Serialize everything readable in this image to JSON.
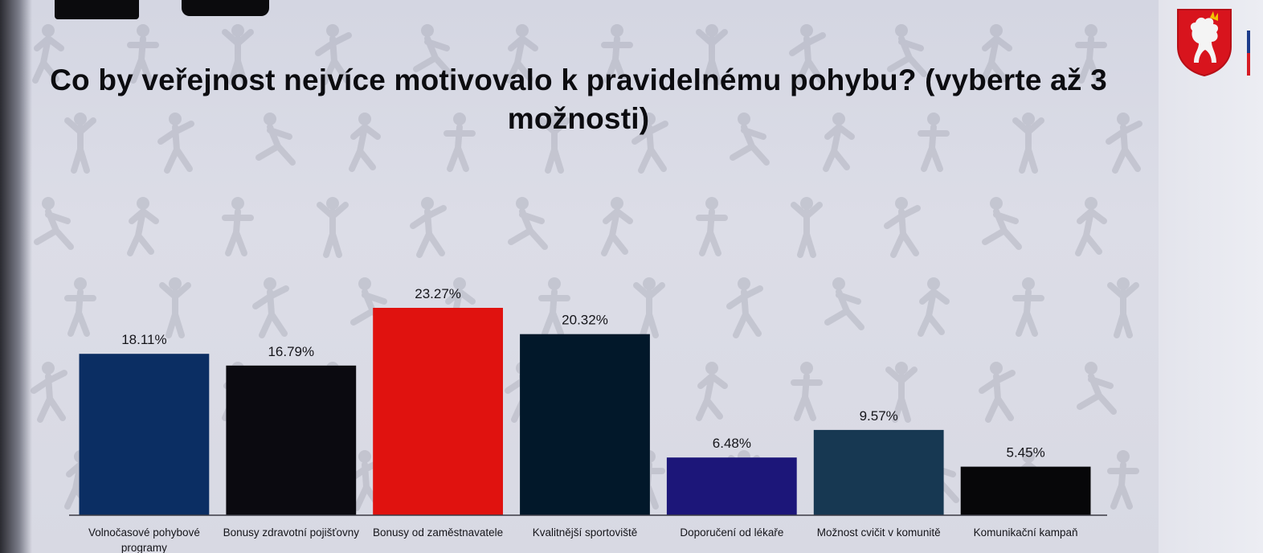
{
  "title": "Co by veřejnost nejvíce motivovalo k pravidelnému pohybu? (vyberte až 3 možnosti)",
  "colors": {
    "navy": "#0b2e63",
    "black": "#0b0a10",
    "red": "#e0120f",
    "dark_teal": "#02182a",
    "indigo": "#1c1679",
    "slate_blue": "#173852",
    "near_black": "#070709"
  },
  "chart_data": {
    "type": "bar",
    "title": "Co by veřejnost nejvíce motivovalo k pravidelnému pohybu? (vyberte až 3 možnosti)",
    "categories": [
      "Volnočasové pohybové programy",
      "Bonusy zdravotní pojišťovny",
      "Bonusy od zaměstnavatele",
      "Kvalitnější sportoviště",
      "Doporučení od lékaře",
      "Možnost cvičit v komunitě",
      "Komunikační kampaň"
    ],
    "category_lines": [
      [
        "Volnočasové pohybové",
        "programy"
      ],
      [
        "Bonusy zdravotní pojišťovny"
      ],
      [
        "Bonusy od zaměstnavatele"
      ],
      [
        "Kvalitnější sportoviště"
      ],
      [
        "Doporučení od lékaře"
      ],
      [
        "Možnost cvičit v komunitě"
      ],
      [
        "Komunikační kampaň"
      ]
    ],
    "values": [
      18.11,
      16.79,
      23.27,
      20.32,
      6.48,
      9.57,
      5.45
    ],
    "value_labels": [
      "18.11%",
      "16.79%",
      "23.27%",
      "20.32%",
      "6.48%",
      "9.57%",
      "5.45%"
    ],
    "bar_colors": [
      "#0b2e63",
      "#0b0a10",
      "#e0120f",
      "#02182a",
      "#1c1679",
      "#173852",
      "#070709"
    ],
    "ylim": [
      0,
      30
    ],
    "grid": false,
    "legend": "none",
    "xlabel": "",
    "ylabel": ""
  }
}
